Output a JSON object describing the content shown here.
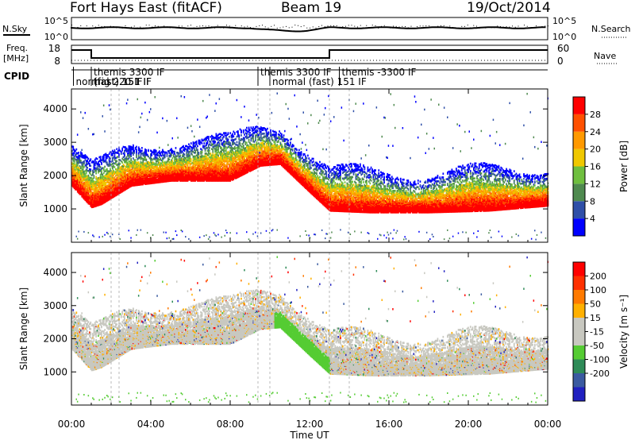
{
  "header": {
    "site": "Fort Hays East (fitACF)",
    "beam": "Beam 19",
    "date": "19/Oct/2014"
  },
  "strips": {
    "nsky_label": "N.Sky",
    "nsearch_label": "N.Search",
    "noise_ticks": [
      "10^5",
      "10^0"
    ],
    "freq_label_1": "Freq.",
    "freq_label_2": "[MHz]",
    "freq_ticks": [
      "18",
      "8"
    ],
    "nave_label": "Nave",
    "nave_ticks": [
      "60",
      "0"
    ],
    "cpid_label": "CPID",
    "cpid_segments": [
      {
        "label": "normal",
        "start": 0.1,
        "end": 1.0
      },
      {
        "label": "themis 3300 IF",
        "start": 1.0,
        "end": 9.4
      },
      {
        "label": "(fast) 151 IF",
        "start": 1.0,
        "end": 2.0
      },
      {
        "label": "(fast) 151 IF",
        "start": 1.0,
        "end": 2.4
      },
      {
        "label": "trig 220 IF",
        "start": 1.0,
        "end": 9.4
      },
      {
        "label": "themis 3300 IF",
        "start": 9.4,
        "end": 13.0
      },
      {
        "label": "normal (fast) 151 IF",
        "start": 10.0,
        "end": 13.0
      },
      {
        "label": "themis -3300 IF",
        "start": 13.5,
        "end": 24.0
      }
    ]
  },
  "colors": {
    "power": [
      "#0000ff",
      "#2f4fa8",
      "#4f8a4f",
      "#6fbf3f",
      "#f0c800",
      "#ff9900",
      "#ff5000",
      "#ff0000"
    ],
    "velocity": [
      "#2020c0",
      "#3a5aa0",
      "#2e8b57",
      "#55cc33",
      "#c8c8c0",
      "#c8c8c0",
      "#ffb000",
      "#ff7a00",
      "#ff3000",
      "#ff0000"
    ]
  },
  "chart_data": [
    {
      "type": "heatmap",
      "panel": "power",
      "ylabel": "Slant Range [km]",
      "yticks": [
        1000,
        2000,
        3000,
        4000
      ],
      "ylim": [
        0,
        4600
      ],
      "xlim": [
        0,
        24
      ],
      "colorbar_label": "Power [dB]",
      "colorbar_ticks": [
        4,
        8,
        12,
        16,
        20,
        24,
        28
      ],
      "colorbar_range": [
        0,
        32
      ],
      "main_echo_range_km": [
        [
          0,
          1900
        ],
        [
          1,
          1250
        ],
        [
          1.5,
          1350
        ],
        [
          3,
          1900
        ],
        [
          5,
          2050
        ],
        [
          8,
          2050
        ],
        [
          9.5,
          2500
        ],
        [
          10.5,
          2550
        ],
        [
          12,
          1700
        ],
        [
          13,
          1150
        ],
        [
          15,
          1100
        ],
        [
          18,
          1100
        ],
        [
          21,
          1150
        ],
        [
          24,
          1300
        ]
      ]
    },
    {
      "type": "heatmap",
      "panel": "velocity",
      "ylabel": "Slant Range [km]",
      "yticks": [
        1000,
        2000,
        3000,
        4000
      ],
      "ylim": [
        0,
        4600
      ],
      "xlim": [
        0,
        24
      ],
      "colorbar_label": "Velocity [m s⁻¹]",
      "colorbar_ticks": [
        200,
        100,
        50,
        15,
        -15,
        -50,
        -100,
        -200
      ],
      "xlabel": "Time UT",
      "xticks": [
        "00:00",
        "04:00",
        "08:00",
        "12:00",
        "16:00",
        "20:00",
        "00:00"
      ],
      "xtick_hours": [
        0,
        4,
        8,
        12,
        16,
        20,
        24
      ]
    }
  ]
}
